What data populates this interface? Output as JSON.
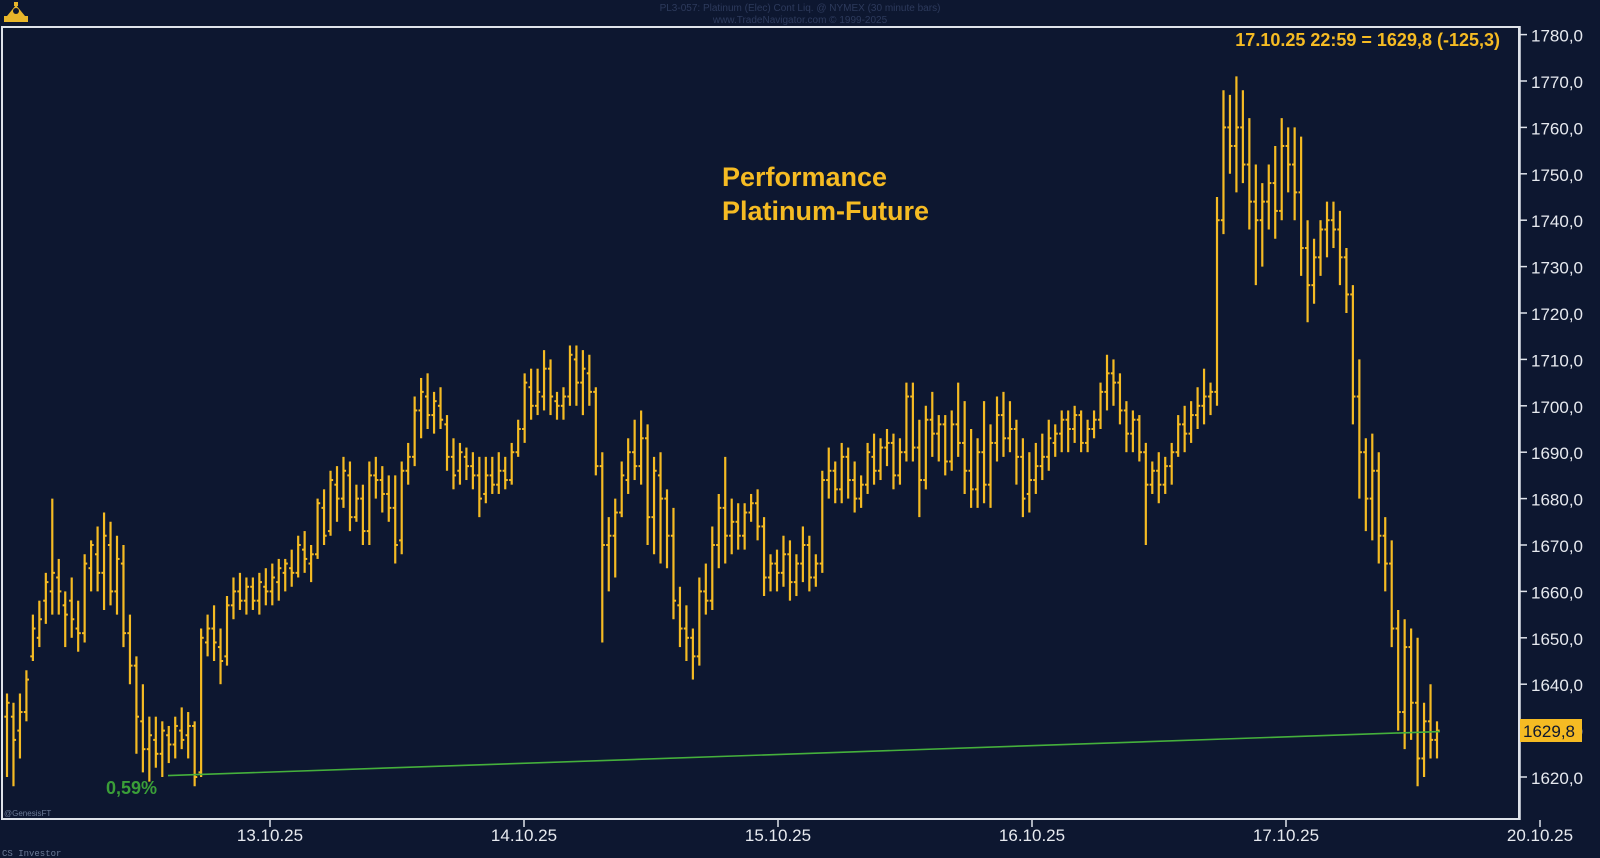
{
  "header": {
    "line1": "PL3-057:  Platinum (Elec) Cont Liq. @ NYMEX  (30 minute bars)",
    "line2": "www.TradeNavigator.com © 1999-2025"
  },
  "watermark_bottom_left": "CS Investor",
  "watermark_inner": "@GenesisFT",
  "chart_data": {
    "type": "bar",
    "subtype": "ohlc",
    "title": "Performance\nPlatinum-Future",
    "title_lines": [
      "Performance",
      "Platinum-Future"
    ],
    "readout": "17.10.25 22:59 = 1629,8 (-125,3)",
    "last_price_label": "1629,8",
    "last_price": 1629.8,
    "performance_label": "0,59%",
    "performance_line": {
      "from": {
        "x": "12.10.25 22:00",
        "y": 1620.3
      },
      "to": {
        "x": "17.10.25 22:59",
        "y": 1629.8
      }
    },
    "ylim": [
      1605,
      1785
    ],
    "y_ticks": [
      1620,
      1630,
      1640,
      1650,
      1660,
      1670,
      1680,
      1690,
      1700,
      1710,
      1720,
      1730,
      1740,
      1750,
      1760,
      1770,
      1780
    ],
    "y_tick_labels": [
      "1620,0",
      "1630,0",
      "1640,0",
      "1650,0",
      "1660,0",
      "1670,0",
      "1680,0",
      "1690,0",
      "1700,0",
      "1710,0",
      "1720,0",
      "1730,0",
      "1740,0",
      "1750,0",
      "1760,0",
      "1770,0",
      "1780,0"
    ],
    "x_tick_labels": [
      "13.10.25",
      "14.10.25",
      "15.10.25",
      "16.10.25",
      "17.10.25",
      "20.10.25"
    ],
    "grid": false,
    "colors": {
      "background": "#0d1730",
      "bars": "#f5bb23",
      "line": "#45b03c",
      "label": "#f5bb23",
      "perf_text": "#3a9e38"
    },
    "bars": [
      [
        1633,
        1638,
        1620,
        1636
      ],
      [
        1633,
        1636,
        1618,
        1628
      ],
      [
        1630,
        1638,
        1624,
        1634
      ],
      [
        1634,
        1643,
        1632,
        1641
      ],
      [
        1646,
        1655,
        1645,
        1652
      ],
      [
        1650,
        1658,
        1648,
        1654
      ],
      [
        1658,
        1664,
        1653,
        1662
      ],
      [
        1660,
        1680,
        1655,
        1664
      ],
      [
        1663,
        1667,
        1655,
        1660
      ],
      [
        1657,
        1660,
        1648,
        1655
      ],
      [
        1658,
        1663,
        1650,
        1654
      ],
      [
        1652,
        1658,
        1647,
        1651
      ],
      [
        1651,
        1668,
        1649,
        1666
      ],
      [
        1665,
        1671,
        1660,
        1670
      ],
      [
        1668,
        1674,
        1660,
        1664
      ],
      [
        1664,
        1677,
        1656,
        1672
      ],
      [
        1670,
        1675,
        1657,
        1660
      ],
      [
        1660,
        1672,
        1655,
        1667
      ],
      [
        1666,
        1670,
        1648,
        1651
      ],
      [
        1651,
        1655,
        1640,
        1644
      ],
      [
        1644,
        1646,
        1625,
        1633
      ],
      [
        1632,
        1640,
        1621,
        1626
      ],
      [
        1626,
        1633,
        1619,
        1629
      ],
      [
        1628,
        1633,
        1622,
        1625
      ],
      [
        1625,
        1632,
        1620,
        1630
      ],
      [
        1629,
        1631,
        1623,
        1627
      ],
      [
        1627,
        1633,
        1624,
        1631
      ],
      [
        1630,
        1635,
        1626,
        1628
      ],
      [
        1629,
        1634,
        1624,
        1631
      ],
      [
        1631,
        1632,
        1618,
        1620
      ],
      [
        1621,
        1652,
        1620,
        1650
      ],
      [
        1649,
        1655,
        1646,
        1652
      ],
      [
        1652,
        1657,
        1645,
        1649
      ],
      [
        1648,
        1652,
        1640,
        1645
      ],
      [
        1646,
        1659,
        1644,
        1657
      ],
      [
        1657,
        1663,
        1654,
        1660
      ],
      [
        1660,
        1664,
        1656,
        1658
      ],
      [
        1658,
        1663,
        1655,
        1661
      ],
      [
        1661,
        1663,
        1656,
        1658
      ],
      [
        1658,
        1664,
        1655,
        1662
      ],
      [
        1661,
        1665,
        1657,
        1660
      ],
      [
        1660,
        1666,
        1657,
        1663
      ],
      [
        1662,
        1667,
        1658,
        1665
      ],
      [
        1664,
        1667,
        1660,
        1666
      ],
      [
        1665,
        1669,
        1661,
        1664
      ],
      [
        1664,
        1672,
        1663,
        1670
      ],
      [
        1669,
        1673,
        1664,
        1667
      ],
      [
        1666,
        1670,
        1662,
        1668
      ],
      [
        1668,
        1680,
        1667,
        1679
      ],
      [
        1678,
        1682,
        1670,
        1672
      ],
      [
        1673,
        1686,
        1672,
        1684
      ],
      [
        1683,
        1687,
        1675,
        1680
      ],
      [
        1680,
        1689,
        1678,
        1686
      ],
      [
        1685,
        1688,
        1673,
        1676
      ],
      [
        1676,
        1683,
        1675,
        1680
      ],
      [
        1680,
        1683,
        1670,
        1673
      ],
      [
        1673,
        1688,
        1670,
        1685
      ],
      [
        1685,
        1689,
        1680,
        1684
      ],
      [
        1684,
        1687,
        1677,
        1681
      ],
      [
        1681,
        1685,
        1675,
        1678
      ],
      [
        1678,
        1685,
        1666,
        1670
      ],
      [
        1671,
        1688,
        1668,
        1686
      ],
      [
        1686,
        1692,
        1683,
        1689
      ],
      [
        1689,
        1702,
        1687,
        1699
      ],
      [
        1699,
        1706,
        1693,
        1703
      ],
      [
        1702,
        1707,
        1695,
        1698
      ],
      [
        1698,
        1703,
        1694,
        1701
      ],
      [
        1700,
        1704,
        1695,
        1697
      ],
      [
        1696,
        1698,
        1686,
        1689
      ],
      [
        1689,
        1693,
        1682,
        1685
      ],
      [
        1686,
        1692,
        1683,
        1690
      ],
      [
        1689,
        1691,
        1684,
        1687
      ],
      [
        1687,
        1690,
        1682,
        1685
      ],
      [
        1685,
        1689,
        1676,
        1680
      ],
      [
        1681,
        1689,
        1679,
        1685
      ],
      [
        1685,
        1689,
        1681,
        1683
      ],
      [
        1683,
        1690,
        1681,
        1686
      ],
      [
        1686,
        1689,
        1682,
        1684
      ],
      [
        1684,
        1692,
        1683,
        1690
      ],
      [
        1690,
        1697,
        1689,
        1695
      ],
      [
        1695,
        1707,
        1692,
        1705
      ],
      [
        1704,
        1708,
        1697,
        1700
      ],
      [
        1700,
        1708,
        1698,
        1703
      ],
      [
        1702,
        1712,
        1699,
        1708
      ],
      [
        1708,
        1710,
        1698,
        1702
      ],
      [
        1701,
        1703,
        1697,
        1700
      ],
      [
        1700,
        1704,
        1697,
        1702
      ],
      [
        1702,
        1713,
        1700,
        1711
      ],
      [
        1710,
        1713,
        1700,
        1705
      ],
      [
        1705,
        1712,
        1698,
        1708
      ],
      [
        1707,
        1711,
        1700,
        1703
      ],
      [
        1703,
        1704,
        1685,
        1687
      ],
      [
        1687,
        1690,
        1649,
        1670
      ],
      [
        1670,
        1676,
        1660,
        1672
      ],
      [
        1672,
        1680,
        1663,
        1677
      ],
      [
        1677,
        1688,
        1676,
        1685
      ],
      [
        1684,
        1693,
        1681,
        1690
      ],
      [
        1690,
        1697,
        1684,
        1687
      ],
      [
        1687,
        1699,
        1683,
        1693
      ],
      [
        1693,
        1696,
        1670,
        1676
      ],
      [
        1676,
        1689,
        1668,
        1686
      ],
      [
        1685,
        1690,
        1666,
        1680
      ],
      [
        1680,
        1682,
        1665,
        1672
      ],
      [
        1672,
        1678,
        1654,
        1658
      ],
      [
        1657,
        1661,
        1648,
        1652
      ],
      [
        1652,
        1657,
        1645,
        1650
      ],
      [
        1650,
        1652,
        1641,
        1646
      ],
      [
        1646,
        1663,
        1644,
        1660
      ],
      [
        1660,
        1666,
        1655,
        1658
      ],
      [
        1658,
        1674,
        1656,
        1670
      ],
      [
        1670,
        1681,
        1665,
        1678
      ],
      [
        1678,
        1689,
        1666,
        1672
      ],
      [
        1672,
        1680,
        1668,
        1675
      ],
      [
        1675,
        1679,
        1669,
        1672
      ],
      [
        1672,
        1679,
        1669,
        1677
      ],
      [
        1677,
        1681,
        1675,
        1679
      ],
      [
        1679,
        1682,
        1671,
        1674
      ],
      [
        1674,
        1676,
        1659,
        1663
      ],
      [
        1663,
        1668,
        1660,
        1666
      ],
      [
        1666,
        1669,
        1660,
        1664
      ],
      [
        1664,
        1672,
        1661,
        1668
      ],
      [
        1668,
        1671,
        1658,
        1662
      ],
      [
        1662,
        1668,
        1659,
        1666
      ],
      [
        1666,
        1674,
        1662,
        1670
      ],
      [
        1670,
        1672,
        1660,
        1663
      ],
      [
        1663,
        1668,
        1661,
        1666
      ],
      [
        1666,
        1686,
        1664,
        1684
      ],
      [
        1684,
        1691,
        1680,
        1686
      ],
      [
        1686,
        1688,
        1679,
        1682
      ],
      [
        1682,
        1692,
        1679,
        1689
      ],
      [
        1689,
        1691,
        1680,
        1684
      ],
      [
        1684,
        1688,
        1677,
        1680
      ],
      [
        1680,
        1685,
        1678,
        1683
      ],
      [
        1683,
        1692,
        1681,
        1690
      ],
      [
        1689,
        1694,
        1683,
        1686
      ],
      [
        1686,
        1693,
        1684,
        1691
      ],
      [
        1691,
        1695,
        1687,
        1692
      ],
      [
        1692,
        1694,
        1682,
        1685
      ],
      [
        1685,
        1693,
        1683,
        1690
      ],
      [
        1690,
        1705,
        1688,
        1702
      ],
      [
        1702,
        1705,
        1688,
        1691
      ],
      [
        1691,
        1697,
        1676,
        1684
      ],
      [
        1684,
        1700,
        1682,
        1697
      ],
      [
        1697,
        1703,
        1689,
        1694
      ],
      [
        1694,
        1698,
        1688,
        1696
      ],
      [
        1696,
        1698,
        1685,
        1688
      ],
      [
        1688,
        1699,
        1686,
        1696
      ],
      [
        1696,
        1705,
        1689,
        1692
      ],
      [
        1692,
        1701,
        1681,
        1686
      ],
      [
        1686,
        1695,
        1678,
        1682
      ],
      [
        1682,
        1693,
        1678,
        1690
      ],
      [
        1690,
        1701,
        1679,
        1683
      ],
      [
        1683,
        1696,
        1678,
        1692
      ],
      [
        1692,
        1702,
        1688,
        1698
      ],
      [
        1698,
        1703,
        1689,
        1693
      ],
      [
        1693,
        1701,
        1690,
        1695
      ],
      [
        1695,
        1697,
        1683,
        1689
      ],
      [
        1689,
        1693,
        1676,
        1680
      ],
      [
        1681,
        1690,
        1677,
        1684
      ],
      [
        1684,
        1692,
        1681,
        1687
      ],
      [
        1687,
        1694,
        1684,
        1689
      ],
      [
        1689,
        1697,
        1686,
        1693
      ],
      [
        1692,
        1696,
        1689,
        1694
      ],
      [
        1694,
        1699,
        1690,
        1697
      ],
      [
        1697,
        1699,
        1690,
        1695
      ],
      [
        1695,
        1700,
        1692,
        1698
      ],
      [
        1698,
        1699,
        1690,
        1692
      ],
      [
        1692,
        1697,
        1690,
        1695
      ],
      [
        1695,
        1699,
        1693,
        1697
      ],
      [
        1697,
        1705,
        1695,
        1703
      ],
      [
        1703,
        1711,
        1699,
        1707
      ],
      [
        1707,
        1710,
        1700,
        1705
      ],
      [
        1705,
        1707,
        1696,
        1699
      ],
      [
        1699,
        1701,
        1690,
        1694
      ],
      [
        1694,
        1699,
        1690,
        1697
      ],
      [
        1697,
        1698,
        1688,
        1690
      ],
      [
        1690,
        1692,
        1670,
        1683
      ],
      [
        1683,
        1688,
        1681,
        1686
      ],
      [
        1686,
        1690,
        1679,
        1683
      ],
      [
        1683,
        1689,
        1681,
        1687
      ],
      [
        1687,
        1692,
        1683,
        1690
      ],
      [
        1690,
        1698,
        1689,
        1696
      ],
      [
        1696,
        1700,
        1690,
        1694
      ],
      [
        1694,
        1701,
        1692,
        1698
      ],
      [
        1698,
        1704,
        1695,
        1700
      ],
      [
        1700,
        1708,
        1696,
        1702
      ],
      [
        1702,
        1705,
        1698,
        1703
      ],
      [
        1703,
        1745,
        1700,
        1740
      ],
      [
        1740,
        1768,
        1737,
        1760
      ],
      [
        1760,
        1767,
        1750,
        1756
      ],
      [
        1756,
        1771,
        1746,
        1760
      ],
      [
        1760,
        1768,
        1748,
        1752
      ],
      [
        1752,
        1762,
        1738,
        1744
      ],
      [
        1744,
        1752,
        1726,
        1740
      ],
      [
        1740,
        1748,
        1730,
        1744
      ],
      [
        1744,
        1752,
        1738,
        1748
      ],
      [
        1748,
        1756,
        1736,
        1742
      ],
      [
        1742,
        1762,
        1740,
        1756
      ],
      [
        1756,
        1760,
        1746,
        1752
      ],
      [
        1752,
        1760,
        1740,
        1746
      ],
      [
        1746,
        1758,
        1728,
        1734
      ],
      [
        1734,
        1740,
        1718,
        1726
      ],
      [
        1726,
        1736,
        1722,
        1732
      ],
      [
        1732,
        1740,
        1728,
        1738
      ],
      [
        1738,
        1744,
        1732,
        1740
      ],
      [
        1740,
        1744,
        1734,
        1738
      ],
      [
        1738,
        1742,
        1726,
        1732
      ],
      [
        1732,
        1734,
        1720,
        1724
      ],
      [
        1724,
        1726,
        1696,
        1702
      ],
      [
        1702,
        1710,
        1680,
        1690
      ],
      [
        1690,
        1693,
        1673,
        1680
      ],
      [
        1680,
        1694,
        1671,
        1686
      ],
      [
        1686,
        1690,
        1666,
        1672
      ],
      [
        1672,
        1676,
        1660,
        1666
      ],
      [
        1666,
        1671,
        1648,
        1652
      ],
      [
        1652,
        1656,
        1630,
        1634
      ],
      [
        1634,
        1654,
        1626,
        1648
      ],
      [
        1648,
        1652,
        1628,
        1636
      ],
      [
        1636,
        1650,
        1618,
        1624
      ],
      [
        1624,
        1636,
        1620,
        1632
      ],
      [
        1632,
        1640,
        1624,
        1628
      ],
      [
        1628,
        1632,
        1624,
        1630
      ]
    ]
  }
}
